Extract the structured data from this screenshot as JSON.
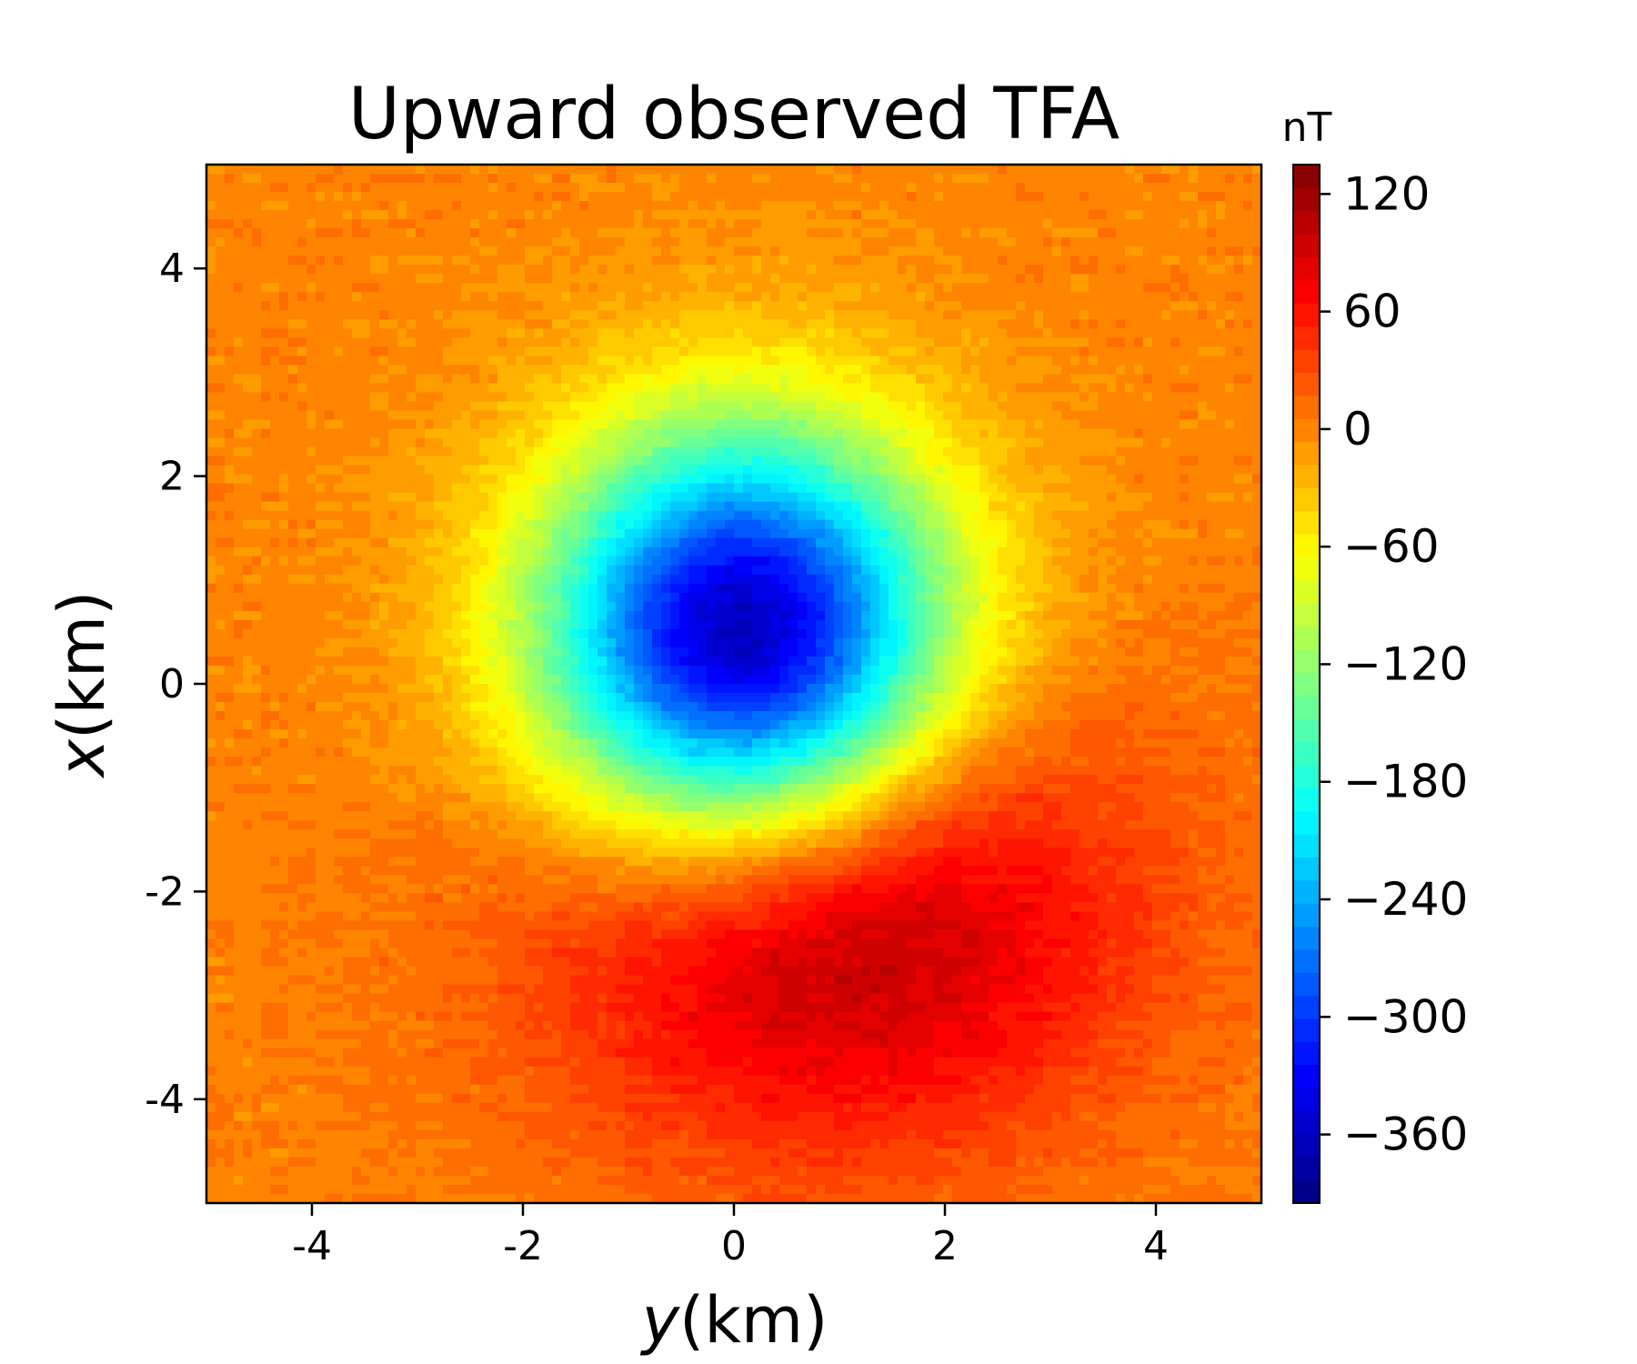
{
  "chart_data": {
    "type": "heatmap",
    "title": "Upward observed TFA",
    "xlabel_italic": "y",
    "xlabel_rest": "(km)",
    "ylabel_italic": "x",
    "ylabel_rest": "(km)",
    "xlim": [
      -5,
      5
    ],
    "ylim": [
      -5,
      5
    ],
    "xticks": [
      -4,
      -2,
      0,
      2,
      4
    ],
    "xtick_labels": [
      "-4",
      "-2",
      "0",
      "2",
      "4"
    ],
    "yticks": [
      -4,
      -2,
      0,
      2,
      4
    ],
    "ytick_labels": [
      "-4",
      "-2",
      "0",
      "2",
      "4"
    ],
    "grid": false,
    "colormap": "jet",
    "colorbar": {
      "unit_label": "nT",
      "range": [
        -395,
        135
      ],
      "ticks": [
        120,
        60,
        0,
        -60,
        -120,
        -180,
        -240,
        -300,
        -360
      ],
      "tick_labels": [
        "120",
        "60",
        "0",
        "−60",
        "−120",
        "−180",
        "−240",
        "−300",
        "−360"
      ],
      "levels": 45
    },
    "anomalies": [
      {
        "kind": "low",
        "center_y_km": 0.1,
        "center_x_km": 0.4,
        "peak_nT": -395,
        "spread_y_km": 1.35,
        "spread_x_km": 1.4
      },
      {
        "kind": "high",
        "center_y_km": 0.9,
        "center_x_km": -2.1,
        "peak_nT": 130,
        "spread_y_km": 1.9,
        "spread_x_km": 1.6
      }
    ],
    "background_nT": 0
  }
}
